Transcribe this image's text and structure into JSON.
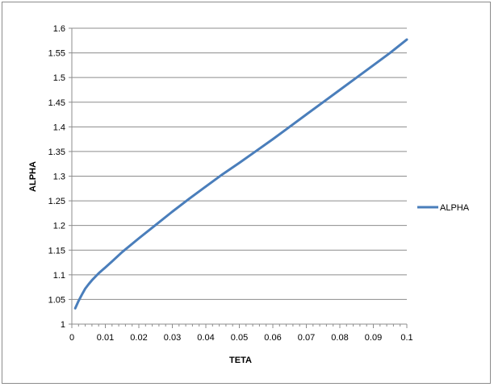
{
  "chart_data": {
    "type": "line",
    "title": "",
    "xlabel": "TETA",
    "ylabel": "ALPHA",
    "xlim": [
      0,
      0.1
    ],
    "ylim": [
      1,
      1.6
    ],
    "xticks": [
      0,
      0.01,
      0.02,
      0.03,
      0.04,
      0.05,
      0.06,
      0.07,
      0.08,
      0.09,
      0.1
    ],
    "xtick_labels": [
      "0",
      "0.01",
      "0.02",
      "0.03",
      "0.04",
      "0.05",
      "0.06",
      "0.07",
      "0.08",
      "0.09",
      "0.1"
    ],
    "yticks": [
      1,
      1.05,
      1.1,
      1.15,
      1.2,
      1.25,
      1.3,
      1.35,
      1.4,
      1.45,
      1.5,
      1.55,
      1.6
    ],
    "ytick_labels": [
      "1",
      "1.05",
      "1.1",
      "1.15",
      "1.2",
      "1.25",
      "1.3",
      "1.35",
      "1.4",
      "1.45",
      "1.5",
      "1.55",
      "1.6"
    ],
    "grid": "horizontal",
    "legend_position": "right",
    "series": [
      {
        "name": "ALPHA",
        "color": "#4a7ebb",
        "x": [
          0.001,
          0.002,
          0.003,
          0.004,
          0.005,
          0.006,
          0.008,
          0.01,
          0.012,
          0.015,
          0.02,
          0.025,
          0.03,
          0.035,
          0.04,
          0.045,
          0.05,
          0.055,
          0.06,
          0.065,
          0.07,
          0.075,
          0.08,
          0.085,
          0.09,
          0.095,
          0.1
        ],
        "values": [
          1.032,
          1.047,
          1.06,
          1.072,
          1.081,
          1.089,
          1.103,
          1.115,
          1.127,
          1.146,
          1.174,
          1.201,
          1.228,
          1.254,
          1.279,
          1.304,
          1.327,
          1.351,
          1.375,
          1.4,
          1.425,
          1.45,
          1.475,
          1.5,
          1.525,
          1.55,
          1.577
        ]
      }
    ]
  }
}
